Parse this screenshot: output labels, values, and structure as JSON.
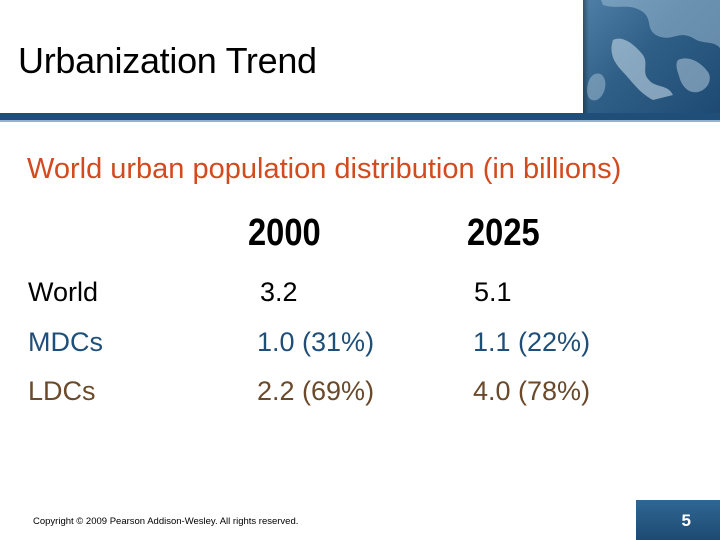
{
  "header": {
    "title": "Urbanization Trend"
  },
  "subtitle": "World urban population distribution (in billions)",
  "table": {
    "columns": [
      "2000",
      "2025"
    ],
    "rows": [
      {
        "label": "World",
        "values": [
          "3.2",
          "5.1"
        ],
        "color": "#000000"
      },
      {
        "label": "MDCs",
        "values": [
          "1.0 (31%)",
          "1.1 (22%)"
        ],
        "color": "#1f4f79"
      },
      {
        "label": "LDCs",
        "values": [
          "2.2 (69%)",
          "4.0 (78%)"
        ],
        "color": "#6b4a2b"
      }
    ]
  },
  "footer": {
    "copyright": "Copyright © 2009 Pearson Addison-Wesley. All rights reserved.",
    "page_number": "5"
  },
  "colors": {
    "subtitle": "#d24a1e",
    "header_bar": "#1f4f79"
  },
  "icons": {
    "header_image": "map-icon"
  }
}
